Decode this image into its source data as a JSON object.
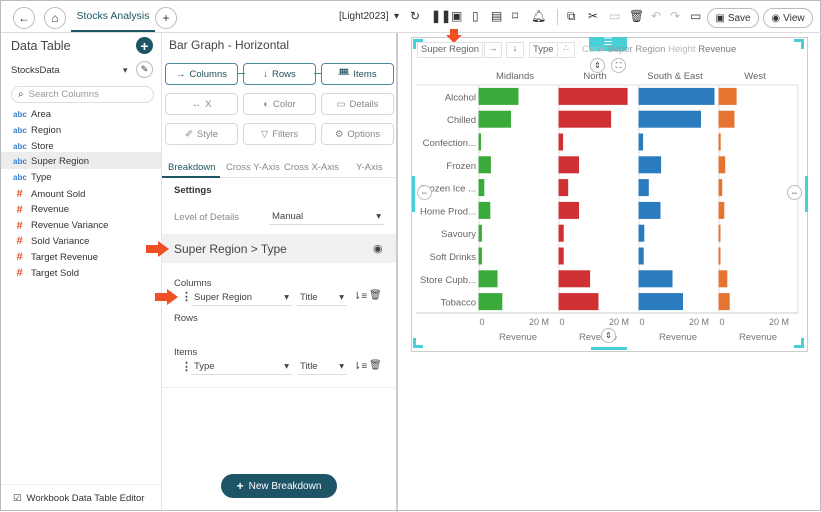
{
  "header": {
    "tab": "Stocks Analysis",
    "theme": "[Light2023]",
    "save": "Save",
    "view": "View",
    "icons": [
      "back-icon",
      "home-icon",
      "add-tab-icon",
      "refresh-icon",
      "pause-icon",
      "snapshot-icon",
      "pdf-icon",
      "excel-icon",
      "bookmark-icon",
      "alert-icon",
      "copy-icon",
      "cut-icon",
      "paste-icon",
      "delete-icon",
      "undo-icon",
      "redo-icon",
      "comment-icon"
    ]
  },
  "datatable": {
    "title": "Data Table",
    "source": "StocksData",
    "search_placeholder": "Search Columns",
    "fields": [
      {
        "type": "abc",
        "name": "Area"
      },
      {
        "type": "abc",
        "name": "Region"
      },
      {
        "type": "abc",
        "name": "Store"
      },
      {
        "type": "abc",
        "name": "Super Region"
      },
      {
        "type": "abc",
        "name": "Type"
      },
      {
        "type": "#",
        "name": "Amount Sold"
      },
      {
        "type": "#",
        "name": "Revenue"
      },
      {
        "type": "#",
        "name": "Revenue Variance"
      },
      {
        "type": "#",
        "name": "Sold Variance"
      },
      {
        "type": "#",
        "name": "Target Revenue"
      },
      {
        "type": "#",
        "name": "Target Sold"
      }
    ],
    "footer": "Workbook Data Table Editor"
  },
  "config": {
    "title": "Bar Graph - Horizontal",
    "buttons": {
      "columns": "Columns",
      "rows": "Rows",
      "items": "Items",
      "x": "X",
      "color": "Color",
      "details": "Details",
      "style": "Style",
      "filters": "Filters",
      "options": "Options"
    },
    "tabs": [
      "Breakdown",
      "Cross Y-Axis",
      "Cross X-Axis",
      "Y-Axis"
    ],
    "settings": "Settings",
    "lod_label": "Level of Details",
    "lod_value": "Manual",
    "breakdown": "Super Region > Type",
    "columns_label": "Columns",
    "columns_field": "Super Region",
    "columns_title": "Title",
    "rows_label": "Rows",
    "items_label": "Items",
    "items_field": "Type",
    "items_title": "Title",
    "new_breakdown": "New Breakdown"
  },
  "accent": "#1d5466",
  "chart_data": {
    "type": "bar",
    "orientation": "horizontal",
    "toolbar": {
      "col": "Super Region",
      "item": "Type",
      "color_label": "Color",
      "color_value": "Super Region",
      "height_label": "Height",
      "height_value": "Revenue"
    },
    "categories": [
      "Alcohol",
      "Chilled",
      "Confection...",
      "Frozen",
      "Frozen Ice ...",
      "Home Prod...",
      "Savoury",
      "Soft Drinks",
      "Store Cupb...",
      "Tobacco"
    ],
    "xlabel": "Revenue",
    "xlim": [
      0,
      25000000
    ],
    "ticks": [
      "0",
      "20 M"
    ],
    "series": [
      {
        "name": "Midlands",
        "color": "#3aaa3a",
        "values": [
          13000000,
          10500000,
          500000,
          3800000,
          1600000,
          3600000,
          800000,
          800000,
          6000000,
          7600000
        ]
      },
      {
        "name": "North",
        "color": "#cf3034",
        "values": [
          22700000,
          17200000,
          1200000,
          6500000,
          2900000,
          6500000,
          1400000,
          1400000,
          10200000,
          13000000
        ]
      },
      {
        "name": "South & East",
        "color": "#2b7bbf",
        "values": [
          25000000,
          20500000,
          1200000,
          7200000,
          3100000,
          7000000,
          1600000,
          1400000,
          11000000,
          14500000
        ]
      },
      {
        "name": "West",
        "color": "#e57430",
        "values": [
          5700000,
          5000000,
          400000,
          1900000,
          900000,
          1600000,
          300000,
          300000,
          2600000,
          3400000
        ]
      }
    ]
  }
}
